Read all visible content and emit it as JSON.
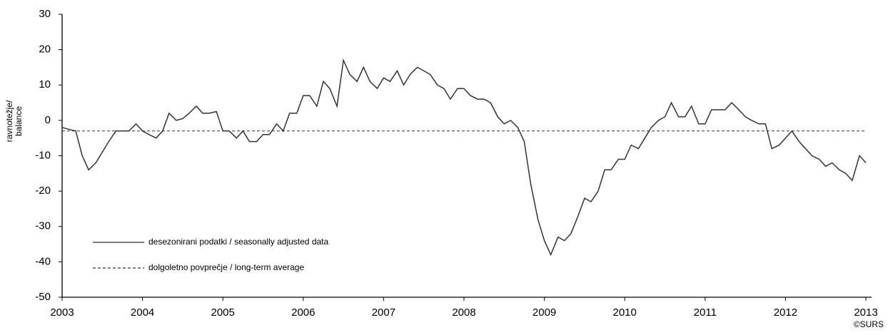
{
  "chart_data": {
    "type": "line",
    "ylabel": [
      "ravnotežje/",
      "balance"
    ],
    "copyright": "©SURS",
    "xlim": [
      2003,
      2013
    ],
    "xticks": [
      2003,
      2004,
      2005,
      2006,
      2007,
      2008,
      2009,
      2010,
      2011,
      2012,
      2013
    ],
    "ylim": [
      -50,
      30
    ],
    "yticks": [
      -50,
      -40,
      -30,
      -20,
      -10,
      0,
      10,
      20,
      30
    ],
    "grid": false,
    "series": [
      {
        "name": "desezonirani podatki / seasonally adjusted data",
        "color": "#333333",
        "dash": "solid",
        "x": [
          2003,
          2003.08,
          2003.17,
          2003.25,
          2003.33,
          2003.42,
          2003.5,
          2003.58,
          2003.67,
          2003.75,
          2003.83,
          2003.92,
          2004,
          2004.08,
          2004.17,
          2004.25,
          2004.33,
          2004.42,
          2004.5,
          2004.58,
          2004.67,
          2004.75,
          2004.83,
          2004.92,
          2005,
          2005.08,
          2005.17,
          2005.25,
          2005.33,
          2005.42,
          2005.5,
          2005.58,
          2005.67,
          2005.75,
          2005.83,
          2005.92,
          2006,
          2006.08,
          2006.17,
          2006.25,
          2006.33,
          2006.42,
          2006.5,
          2006.58,
          2006.67,
          2006.75,
          2006.83,
          2006.92,
          2007,
          2007.08,
          2007.17,
          2007.25,
          2007.33,
          2007.42,
          2007.5,
          2007.58,
          2007.67,
          2007.75,
          2007.83,
          2007.92,
          2008,
          2008.08,
          2008.17,
          2008.25,
          2008.33,
          2008.42,
          2008.5,
          2008.58,
          2008.67,
          2008.75,
          2008.83,
          2008.92,
          2009,
          2009.08,
          2009.17,
          2009.25,
          2009.33,
          2009.42,
          2009.5,
          2009.58,
          2009.67,
          2009.75,
          2009.83,
          2009.92,
          2010,
          2010.08,
          2010.17,
          2010.25,
          2010.33,
          2010.42,
          2010.5,
          2010.58,
          2010.67,
          2010.75,
          2010.83,
          2010.92,
          2011,
          2011.08,
          2011.17,
          2011.25,
          2011.33,
          2011.42,
          2011.5,
          2011.58,
          2011.67,
          2011.75,
          2011.83,
          2011.92,
          2012,
          2012.08,
          2012.17,
          2012.25,
          2012.33,
          2012.42,
          2012.5,
          2012.58,
          2012.67,
          2012.75,
          2012.83,
          2012.92,
          2013
        ],
        "values": [
          -2,
          -2.5,
          -3,
          -10,
          -14,
          -12,
          -9,
          -6,
          -3,
          -3,
          -3,
          -1,
          -3,
          -4,
          -5,
          -3,
          2,
          0,
          0.5,
          2,
          4,
          2,
          2,
          2.5,
          -3,
          -3,
          -5,
          -3,
          -6,
          -6,
          -4,
          -4,
          -1,
          -3,
          2,
          2,
          7,
          7,
          4,
          11,
          9,
          4,
          17,
          13,
          11,
          15,
          11,
          9,
          12,
          11,
          14,
          10,
          13,
          15,
          14,
          13,
          10,
          9,
          6,
          9,
          9,
          7,
          6,
          6,
          5,
          1,
          -1,
          0,
          -2,
          -6,
          -18,
          -28,
          -34,
          -38,
          -33,
          -34,
          -32,
          -27,
          -22,
          -23,
          -20,
          -14,
          -14,
          -11,
          -11,
          -7,
          -8,
          -5,
          -2,
          0,
          1,
          5,
          1,
          1,
          4,
          -1,
          -1,
          3,
          3,
          3,
          5,
          3,
          1,
          0,
          -1,
          -1,
          -8,
          -7,
          -5,
          -3,
          -6,
          -8,
          -10,
          -11,
          -13,
          -12,
          -14,
          -15,
          -17,
          -10,
          -12
        ]
      },
      {
        "name": "dolgoletno povprečje / long-term average",
        "color": "#333333",
        "dash": "dashed",
        "x": [
          2003,
          2013
        ],
        "values": [
          -3,
          -3
        ]
      }
    ]
  }
}
